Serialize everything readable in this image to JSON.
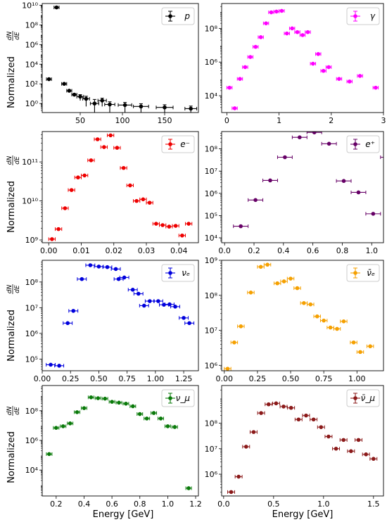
{
  "figure": {
    "ylabel_text": "Normalized",
    "ylabel_frac_num": "dN",
    "ylabel_frac_den": "dE",
    "xlabel": "Energy [GeV]"
  },
  "chart_data": [
    {
      "type": "scatter",
      "legend": "p",
      "color": "#000000",
      "yscale": "log",
      "xlim": [
        5,
        190
      ],
      "ylim": [
        0.12,
        15000000000.0
      ],
      "xticks": [
        50,
        100,
        150
      ],
      "yticks": [
        1,
        100,
        10000,
        1000000,
        100000000,
        10000000000
      ],
      "ytick_labels": [
        "10⁰",
        "10²",
        "10⁴",
        "10⁶",
        "10⁸",
        "10¹⁰"
      ],
      "points": [
        {
          "x": 22,
          "y": 6000000000.0,
          "xerr": 3,
          "yerr": 0
        },
        {
          "x": 13,
          "y": 300,
          "xerr": 3,
          "yerr": 0
        },
        {
          "x": 31,
          "y": 100,
          "xerr": 3,
          "yerr": 0
        },
        {
          "x": 37,
          "y": 20,
          "xerr": 3,
          "yerr": 0
        },
        {
          "x": 43,
          "y": 8,
          "xerr": 3,
          "yerr": 0
        },
        {
          "x": 50,
          "y": 5,
          "xerr": 4,
          "yerr": 3
        },
        {
          "x": 57,
          "y": 3,
          "xerr": 4,
          "yerr": 2.5
        },
        {
          "x": 67,
          "y": 1,
          "xerr": 5,
          "yerr": 1.6
        },
        {
          "x": 76,
          "y": 2,
          "xerr": 5,
          "yerr": 1.5
        },
        {
          "x": 85,
          "y": 0.8,
          "xerr": 6,
          "yerr": 0.7
        },
        {
          "x": 103,
          "y": 0.7,
          "xerr": 8,
          "yerr": 0.6
        },
        {
          "x": 122,
          "y": 0.5,
          "xerr": 9,
          "yerr": 0.45
        },
        {
          "x": 150,
          "y": 0.4,
          "xerr": 10,
          "yerr": 0.35
        },
        {
          "x": 181,
          "y": 0.3,
          "xerr": 7,
          "yerr": 0.25
        }
      ]
    },
    {
      "type": "scatter",
      "legend": "γ",
      "color": "#ff00ff",
      "yscale": "log",
      "xlim": [
        -0.1,
        3.0
      ],
      "ylim": [
        1000,
        3000000000.0
      ],
      "xticks": [
        0,
        1,
        2,
        3
      ],
      "yticks": [
        10000,
        1000000,
        100000000
      ],
      "ytick_labels": [
        "10⁴",
        "10⁶",
        "10⁸"
      ],
      "points": [
        {
          "x": 0.05,
          "y": 30000,
          "xerr": 0.05
        },
        {
          "x": 0.15,
          "y": 1800,
          "xerr": 0.05
        },
        {
          "x": 0.25,
          "y": 100000,
          "xerr": 0.05
        },
        {
          "x": 0.35,
          "y": 500000,
          "xerr": 0.05
        },
        {
          "x": 0.45,
          "y": 2000000,
          "xerr": 0.05
        },
        {
          "x": 0.55,
          "y": 8000000,
          "xerr": 0.05
        },
        {
          "x": 0.65,
          "y": 30000000.0,
          "xerr": 0.05
        },
        {
          "x": 0.75,
          "y": 200000000.0,
          "xerr": 0.05
        },
        {
          "x": 0.85,
          "y": 900000000.0,
          "xerr": 0.05
        },
        {
          "x": 0.95,
          "y": 1000000000.0,
          "xerr": 0.05
        },
        {
          "x": 1.05,
          "y": 1100000000.0,
          "xerr": 0.05
        },
        {
          "x": 1.15,
          "y": 50000000.0,
          "xerr": 0.05
        },
        {
          "x": 1.25,
          "y": 100000000.0,
          "xerr": 0.05
        },
        {
          "x": 1.35,
          "y": 60000000.0,
          "xerr": 0.05
        },
        {
          "x": 1.45,
          "y": 40000000.0,
          "xerr": 0.05
        },
        {
          "x": 1.55,
          "y": 60000000.0,
          "xerr": 0.05
        },
        {
          "x": 1.65,
          "y": 800000,
          "xerr": 0.05
        },
        {
          "x": 1.75,
          "y": 3000000,
          "xerr": 0.05
        },
        {
          "x": 1.85,
          "y": 300000,
          "xerr": 0.05
        },
        {
          "x": 1.95,
          "y": 500000,
          "xerr": 0.05
        },
        {
          "x": 2.15,
          "y": 100000,
          "xerr": 0.05
        },
        {
          "x": 2.35,
          "y": 70000,
          "xerr": 0.05
        },
        {
          "x": 2.55,
          "y": 150000,
          "xerr": 0.05
        },
        {
          "x": 2.85,
          "y": 30000,
          "xerr": 0.05
        }
      ]
    },
    {
      "type": "scatter",
      "legend": "e⁻",
      "color": "#ee0000",
      "yscale": "log",
      "xlim": [
        -0.002,
        0.046
      ],
      "ylim": [
        850000000.0,
        600000000000.0
      ],
      "xticks": [
        0.0,
        0.01,
        0.02,
        0.03,
        0.04
      ],
      "xtick_labels": [
        "0.00",
        "0.01",
        "0.02",
        "0.03",
        "0.04"
      ],
      "yticks": [
        1000000000,
        10000000000,
        100000000000
      ],
      "ytick_labels": [
        "10⁹",
        "10¹⁰",
        "10¹¹"
      ],
      "points": [
        {
          "x": 0.001,
          "y": 1050000000.0,
          "xerr": 0.001
        },
        {
          "x": 0.003,
          "y": 1900000000.0,
          "xerr": 0.001
        },
        {
          "x": 0.005,
          "y": 6500000000.0,
          "xerr": 0.001
        },
        {
          "x": 0.007,
          "y": 19000000000.0,
          "xerr": 0.001
        },
        {
          "x": 0.009,
          "y": 40000000000.0,
          "xerr": 0.001
        },
        {
          "x": 0.011,
          "y": 45000000000.0,
          "xerr": 0.001
        },
        {
          "x": 0.013,
          "y": 110000000000.0,
          "xerr": 0.001
        },
        {
          "x": 0.015,
          "y": 380000000000.0,
          "xerr": 0.001
        },
        {
          "x": 0.017,
          "y": 240000000000.0,
          "xerr": 0.001
        },
        {
          "x": 0.019,
          "y": 480000000000.0,
          "xerr": 0.001
        },
        {
          "x": 0.021,
          "y": 230000000000.0,
          "xerr": 0.001
        },
        {
          "x": 0.023,
          "y": 70000000000.0,
          "xerr": 0.001
        },
        {
          "x": 0.025,
          "y": 25000000000.0,
          "xerr": 0.001
        },
        {
          "x": 0.027,
          "y": 10000000000.0,
          "xerr": 0.001
        },
        {
          "x": 0.029,
          "y": 11000000000.0,
          "xerr": 0.001
        },
        {
          "x": 0.031,
          "y": 9000000000.0,
          "xerr": 0.001
        },
        {
          "x": 0.033,
          "y": 2600000000.0,
          "xerr": 0.001
        },
        {
          "x": 0.035,
          "y": 2400000000.0,
          "xerr": 0.001
        },
        {
          "x": 0.037,
          "y": 2200000000.0,
          "xerr": 0.001
        },
        {
          "x": 0.039,
          "y": 2300000000.0,
          "xerr": 0.001
        },
        {
          "x": 0.041,
          "y": 1300000000.0,
          "xerr": 0.001
        },
        {
          "x": 0.043,
          "y": 2600000000.0,
          "xerr": 0.001
        }
      ]
    },
    {
      "type": "scatter",
      "legend": "e⁺",
      "color": "#660066",
      "yscale": "log",
      "xlim": [
        -0.02,
        1.08
      ],
      "ylim": [
        6000,
        600000000.0
      ],
      "xticks": [
        0.0,
        0.2,
        0.4,
        0.6,
        0.8,
        1.0
      ],
      "xtick_labels": [
        "0.0",
        "0.2",
        "0.4",
        "0.6",
        "0.8",
        "1.0"
      ],
      "yticks": [
        10000,
        100000,
        1000000,
        10000000,
        100000000
      ],
      "ytick_labels": [
        "10⁴",
        "10⁵",
        "10⁶",
        "10⁷",
        "10⁸"
      ],
      "points": [
        {
          "x": 0.11,
          "y": 33000,
          "xerr": 0.05
        },
        {
          "x": 0.21,
          "y": 500000,
          "xerr": 0.05
        },
        {
          "x": 0.31,
          "y": 3800000,
          "xerr": 0.05
        },
        {
          "x": 0.41,
          "y": 42000000.0,
          "xerr": 0.05
        },
        {
          "x": 0.51,
          "y": 330000000.0,
          "xerr": 0.05
        },
        {
          "x": 0.61,
          "y": 550000000.0,
          "xerr": 0.05
        },
        {
          "x": 0.71,
          "y": 170000000.0,
          "xerr": 0.05
        },
        {
          "x": 0.81,
          "y": 3600000,
          "xerr": 0.05
        },
        {
          "x": 0.91,
          "y": 1100000,
          "xerr": 0.05
        },
        {
          "x": 1.01,
          "y": 120000,
          "xerr": 0.05
        },
        {
          "x": 1.11,
          "y": 42000000.0,
          "xerr": 0.05
        }
      ]
    },
    {
      "type": "scatter",
      "legend": "νₑ",
      "color": "#0000dd",
      "yscale": "log",
      "xlim": [
        0.0,
        1.38
      ],
      "ylim": [
        35000,
        700000000.0
      ],
      "xticks": [
        0.0,
        0.25,
        0.5,
        0.75,
        1.0,
        1.25
      ],
      "xtick_labels": [
        "0.00",
        "0.25",
        "0.50",
        "0.75",
        "1.00",
        "1.25"
      ],
      "yticks": [
        100000,
        1000000,
        10000000,
        100000000
      ],
      "ytick_labels": [
        "10⁵",
        "10⁶",
        "10⁷",
        "10⁸"
      ],
      "points": [
        {
          "x": 0.075,
          "y": 60000,
          "xerr": 0.04
        },
        {
          "x": 0.15,
          "y": 55000,
          "xerr": 0.04
        },
        {
          "x": 0.225,
          "y": 2500000,
          "xerr": 0.04
        },
        {
          "x": 0.275,
          "y": 7500000,
          "xerr": 0.04
        },
        {
          "x": 0.35,
          "y": 130000000.0,
          "xerr": 0.04
        },
        {
          "x": 0.425,
          "y": 450000000.0,
          "xerr": 0.04
        },
        {
          "x": 0.5,
          "y": 400000000.0,
          "xerr": 0.04
        },
        {
          "x": 0.575,
          "y": 380000000.0,
          "xerr": 0.04
        },
        {
          "x": 0.65,
          "y": 320000000.0,
          "xerr": 0.04
        },
        {
          "x": 0.675,
          "y": 130000000.0,
          "xerr": 0.04
        },
        {
          "x": 0.725,
          "y": 150000000.0,
          "xerr": 0.04
        },
        {
          "x": 0.8,
          "y": 50000000.0,
          "xerr": 0.04
        },
        {
          "x": 0.85,
          "y": 35000000.0,
          "xerr": 0.04
        },
        {
          "x": 0.9,
          "y": 12000000.0,
          "xerr": 0.04
        },
        {
          "x": 0.95,
          "y": 18000000.0,
          "xerr": 0.04
        },
        {
          "x": 1.025,
          "y": 18000000.0,
          "xerr": 0.04
        },
        {
          "x": 1.075,
          "y": 13000000.0,
          "xerr": 0.04
        },
        {
          "x": 1.125,
          "y": 13500000.0,
          "xerr": 0.04
        },
        {
          "x": 1.175,
          "y": 11000000.0,
          "xerr": 0.04
        },
        {
          "x": 1.25,
          "y": 4000000,
          "xerr": 0.04
        },
        {
          "x": 1.3,
          "y": 2500000,
          "xerr": 0.04
        }
      ]
    },
    {
      "type": "scatter",
      "legend": "ν̄ₑ",
      "color": "#f5a000",
      "yscale": "log",
      "xlim": [
        -0.02,
        1.2
      ],
      "ylim": [
        700000,
        1000000000.0
      ],
      "xticks": [
        0.0,
        0.25,
        0.5,
        0.75,
        1.0
      ],
      "xtick_labels": [
        "0.00",
        "0.25",
        "0.50",
        "0.75",
        "1.00"
      ],
      "yticks": [
        1000000,
        10000000,
        100000000,
        1000000000
      ],
      "ytick_labels": [
        "10⁶",
        "10⁷",
        "10⁸",
        "10⁹"
      ],
      "points": [
        {
          "x": 0.025,
          "y": 800000,
          "xerr": 0.025
        },
        {
          "x": 0.075,
          "y": 4500000,
          "xerr": 0.025
        },
        {
          "x": 0.125,
          "y": 13000000.0,
          "xerr": 0.025
        },
        {
          "x": 0.2,
          "y": 120000000.0,
          "xerr": 0.025
        },
        {
          "x": 0.275,
          "y": 650000000.0,
          "xerr": 0.025
        },
        {
          "x": 0.325,
          "y": 750000000.0,
          "xerr": 0.025
        },
        {
          "x": 0.4,
          "y": 220000000.0,
          "xerr": 0.025
        },
        {
          "x": 0.45,
          "y": 250000000.0,
          "xerr": 0.025
        },
        {
          "x": 0.5,
          "y": 300000000.0,
          "xerr": 0.025
        },
        {
          "x": 0.55,
          "y": 160000000.0,
          "xerr": 0.025
        },
        {
          "x": 0.6,
          "y": 60000000.0,
          "xerr": 0.025
        },
        {
          "x": 0.65,
          "y": 55000000.0,
          "xerr": 0.025
        },
        {
          "x": 0.7,
          "y": 25000000.0,
          "xerr": 0.025
        },
        {
          "x": 0.75,
          "y": 19000000.0,
          "xerr": 0.025
        },
        {
          "x": 0.8,
          "y": 12000000.0,
          "xerr": 0.025
        },
        {
          "x": 0.85,
          "y": 11000000.0,
          "xerr": 0.025
        },
        {
          "x": 0.9,
          "y": 18000000.0,
          "xerr": 0.025
        },
        {
          "x": 0.975,
          "y": 4500000,
          "xerr": 0.025
        },
        {
          "x": 1.025,
          "y": 2400000,
          "xerr": 0.025
        },
        {
          "x": 1.1,
          "y": 3500000,
          "xerr": 0.025
        }
      ]
    },
    {
      "type": "scatter",
      "legend": "ν_μ",
      "color": "#0a7a0a",
      "yscale": "log",
      "xlim": [
        0.1,
        1.22
      ],
      "ylim": [
        180,
        5000000000.0
      ],
      "xticks": [
        0.2,
        0.4,
        0.6,
        0.8,
        1.0,
        1.2
      ],
      "xtick_labels": [
        "0.2",
        "0.4",
        "0.6",
        "0.8",
        "1.0",
        "1.2"
      ],
      "yticks": [
        10000,
        1000000,
        100000000
      ],
      "ytick_labels": [
        "10⁴",
        "10⁶",
        "10⁸"
      ],
      "points": [
        {
          "x": 0.15,
          "y": 120000,
          "xerr": 0.02
        },
        {
          "x": 0.2,
          "y": 7000000,
          "xerr": 0.02
        },
        {
          "x": 0.25,
          "y": 9000000,
          "xerr": 0.02
        },
        {
          "x": 0.3,
          "y": 14000000.0,
          "xerr": 0.02
        },
        {
          "x": 0.35,
          "y": 80000000.0,
          "xerr": 0.02
        },
        {
          "x": 0.4,
          "y": 150000000.0,
          "xerr": 0.02
        },
        {
          "x": 0.45,
          "y": 800000000.0,
          "xerr": 0.02
        },
        {
          "x": 0.5,
          "y": 700000000.0,
          "xerr": 0.02
        },
        {
          "x": 0.55,
          "y": 650000000.0,
          "xerr": 0.02
        },
        {
          "x": 0.6,
          "y": 400000000.0,
          "xerr": 0.02
        },
        {
          "x": 0.65,
          "y": 350000000.0,
          "xerr": 0.02
        },
        {
          "x": 0.7,
          "y": 300000000.0,
          "xerr": 0.02
        },
        {
          "x": 0.75,
          "y": 200000000.0,
          "xerr": 0.02
        },
        {
          "x": 0.8,
          "y": 60000000.0,
          "xerr": 0.02
        },
        {
          "x": 0.85,
          "y": 30000000.0,
          "xerr": 0.02
        },
        {
          "x": 0.9,
          "y": 70000000.0,
          "xerr": 0.02
        },
        {
          "x": 0.95,
          "y": 30000000.0,
          "xerr": 0.02
        },
        {
          "x": 1.0,
          "y": 9000000,
          "xerr": 0.02
        },
        {
          "x": 1.05,
          "y": 8000000,
          "xerr": 0.02
        },
        {
          "x": 1.15,
          "y": 600,
          "xerr": 0.02
        }
      ]
    },
    {
      "type": "scatter",
      "legend": "ν̄_μ",
      "color": "#8b1a1a",
      "yscale": "log",
      "xlim": [
        -0.02,
        1.6
      ],
      "ylim": [
        140000,
        3000000000.0
      ],
      "xticks": [
        0.0,
        0.5,
        1.0,
        1.5
      ],
      "xtick_labels": [
        "0.0",
        "0.5",
        "1.0",
        "1.5"
      ],
      "yticks": [
        1000000,
        10000000,
        100000000
      ],
      "ytick_labels": [
        "10⁶",
        "10⁷",
        "10⁸"
      ],
      "points": [
        {
          "x": 0.075,
          "y": 200000,
          "xerr": 0.035
        },
        {
          "x": 0.15,
          "y": 800000,
          "xerr": 0.035
        },
        {
          "x": 0.225,
          "y": 12000000.0,
          "xerr": 0.035
        },
        {
          "x": 0.3,
          "y": 45000000.0,
          "xerr": 0.035
        },
        {
          "x": 0.375,
          "y": 250000000.0,
          "xerr": 0.035
        },
        {
          "x": 0.45,
          "y": 550000000.0,
          "xerr": 0.035
        },
        {
          "x": 0.525,
          "y": 600000000.0,
          "xerr": 0.035
        },
        {
          "x": 0.6,
          "y": 450000000.0,
          "xerr": 0.035
        },
        {
          "x": 0.675,
          "y": 400000000.0,
          "xerr": 0.035
        },
        {
          "x": 0.75,
          "y": 140000000.0,
          "xerr": 0.035
        },
        {
          "x": 0.825,
          "y": 200000000.0,
          "xerr": 0.035
        },
        {
          "x": 0.9,
          "y": 140000000.0,
          "xerr": 0.035
        },
        {
          "x": 0.975,
          "y": 70000000.0,
          "xerr": 0.035
        },
        {
          "x": 1.05,
          "y": 30000000.0,
          "xerr": 0.035
        },
        {
          "x": 1.125,
          "y": 10000000.0,
          "xerr": 0.035
        },
        {
          "x": 1.2,
          "y": 22000000.0,
          "xerr": 0.035
        },
        {
          "x": 1.275,
          "y": 8000000,
          "xerr": 0.035
        },
        {
          "x": 1.35,
          "y": 22000000.0,
          "xerr": 0.035
        },
        {
          "x": 1.425,
          "y": 6000000,
          "xerr": 0.035
        },
        {
          "x": 1.5,
          "y": 4000000,
          "xerr": 0.035
        }
      ]
    }
  ]
}
